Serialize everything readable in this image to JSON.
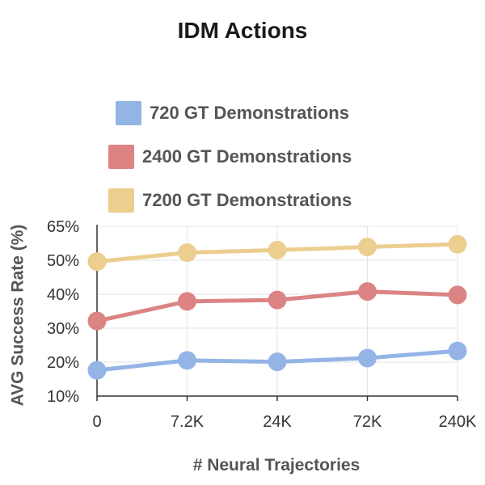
{
  "chart_data": {
    "type": "line",
    "title": "IDM Actions",
    "xlabel": "# Neural Trajectories",
    "ylabel": "AVG Success Rate (%)",
    "categories": [
      "0",
      "7.2K",
      "24K",
      "72K",
      "240K"
    ],
    "y_ticks": [
      "65%",
      "50%",
      "40%",
      "30%",
      "20%",
      "10%"
    ],
    "y_tick_values": [
      65,
      50,
      40,
      30,
      20,
      10
    ],
    "ylim": [
      10,
      65
    ],
    "grid": true,
    "legend_position": "top",
    "series": [
      {
        "name": "720 GT Demonstrations",
        "values": [
          17.6,
          20.5,
          20.1,
          21.2,
          23.3
        ],
        "color": "#94b4e6"
      },
      {
        "name": "2400 GT Demonstrations",
        "values": [
          32.1,
          37.9,
          38.3,
          40.8,
          39.8
        ],
        "color": "#dc8483"
      },
      {
        "name": "7200 GT Demonstrations",
        "values": [
          49.6,
          53.4,
          54.5,
          55.9,
          57.1
        ],
        "color": "#ecce8e"
      }
    ]
  }
}
